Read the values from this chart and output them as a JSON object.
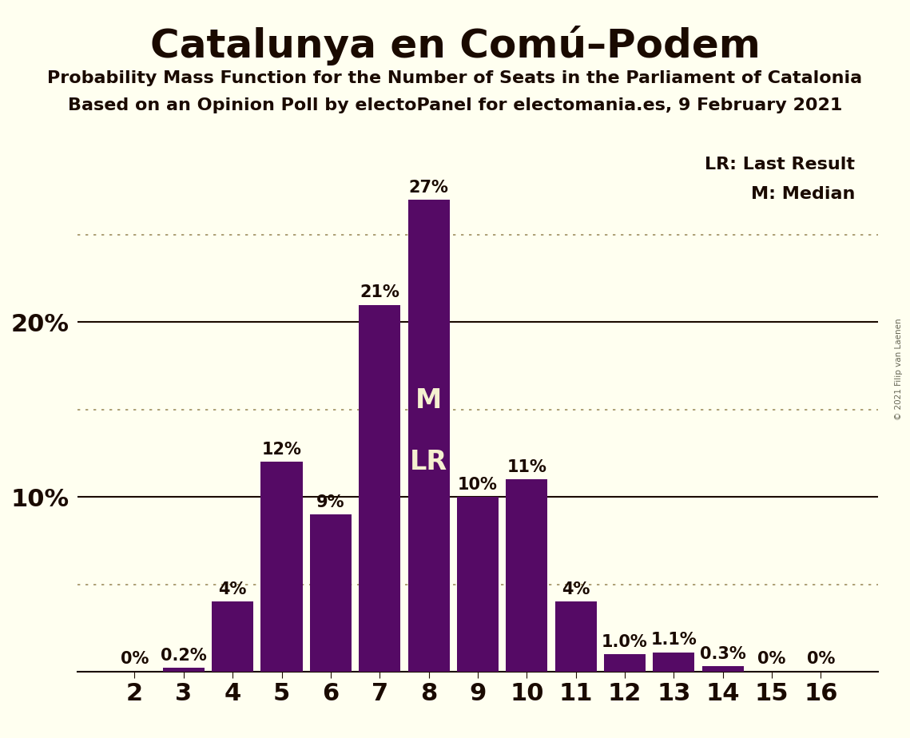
{
  "title": "Catalunya en Comú–Podem",
  "subtitle1": "Probability Mass Function for the Number of Seats in the Parliament of Catalonia",
  "subtitle2": "Based on an Opinion Poll by electoPanel for electomania.es, 9 February 2021",
  "copyright": "© 2021 Filip van Laenen",
  "categories": [
    2,
    3,
    4,
    5,
    6,
    7,
    8,
    9,
    10,
    11,
    12,
    13,
    14,
    15,
    16
  ],
  "values": [
    0.0,
    0.2,
    4.0,
    12.0,
    9.0,
    21.0,
    27.0,
    10.0,
    11.0,
    4.0,
    1.0,
    1.1,
    0.3,
    0.0,
    0.0
  ],
  "labels": [
    "0%",
    "0.2%",
    "4%",
    "12%",
    "9%",
    "21%",
    "27%",
    "10%",
    "11%",
    "4%",
    "1.0%",
    "1.1%",
    "0.3%",
    "0%",
    "0%"
  ],
  "bar_color": "#550a65",
  "background_color": "#fffff0",
  "text_color": "#1a0a00",
  "bar_label_color_inside": "#f5f0d0",
  "bar_label_color_outside": "#1a0a00",
  "median_seat": 8,
  "last_result_seat": 8,
  "ymax": 30,
  "solid_lines": [
    10.0,
    20.0
  ],
  "dotted_lines": [
    5.0,
    15.0,
    25.0
  ],
  "legend_lr": "LR: Last Result",
  "legend_m": "M: Median",
  "title_fontsize": 36,
  "subtitle_fontsize": 16,
  "axis_fontsize": 22,
  "bar_label_fontsize": 15,
  "inside_label_fontsize": 24,
  "dotted_color": "#a09060"
}
